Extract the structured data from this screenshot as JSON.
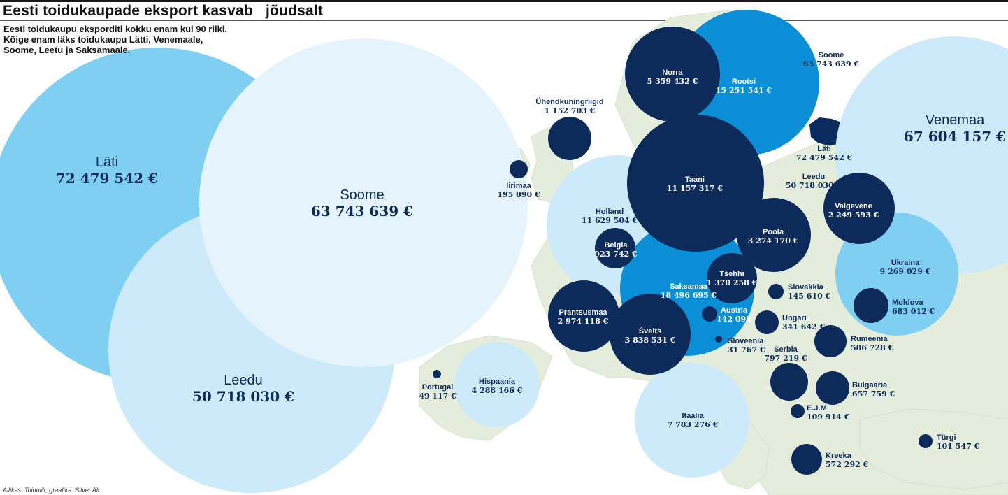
{
  "title": "Eesti toidukaupade eksport kasvab   jõudsalt",
  "intro": [
    "Eesti toidukaupu eksporditi kokku enam kui 90 riiki.",
    "Kõige enam läks toidukaupu Lätti, Venemaale,",
    "Soome, Leetu ja Saksamaale."
  ],
  "source": "Allikas: Toidulilt; graafika: Silver Alt",
  "colors": {
    "land": "#e4ecdb",
    "sea": "#ffffff",
    "estonia": "#0b2a5e",
    "dark": "#0c2b5b",
    "mid": "#0a8fd6",
    "light_blue": "#7fcff3",
    "pale": "#cdeafa",
    "very_pale": "#e5f4fc"
  },
  "countries": [
    {
      "name": "Läti",
      "value": "72 479 542 €",
      "amount": 72479542
    },
    {
      "name": "Venemaa",
      "value": "67 604 157 €",
      "amount": 67604157
    },
    {
      "name": "Soome",
      "value": "63 743 639 €",
      "amount": 63743639
    },
    {
      "name": "Leedu",
      "value": "50 718 030 €",
      "amount": 50718030
    },
    {
      "name": "Saksamaa",
      "value": "18 496 695 €",
      "amount": 18496695
    },
    {
      "name": "Rootsi",
      "value": "15 251 541 €",
      "amount": 15251541
    },
    {
      "name": "Holland",
      "value": "11 629 504 €",
      "amount": 11629504
    },
    {
      "name": "Taani",
      "value": "11 157 317 €",
      "amount": 11157317
    },
    {
      "name": "Ukraina",
      "value": "9 269 029 €",
      "amount": 9269029
    },
    {
      "name": "Itaalia",
      "value": "7 783 276 €",
      "amount": 7783276
    },
    {
      "name": "Norra",
      "value": "5 359 432 €",
      "amount": 5359432
    },
    {
      "name": "Hispaania",
      "value": "4 288 166 €",
      "amount": 4288166
    },
    {
      "name": "Šveits",
      "value": "3 838 531 €",
      "amount": 3838531
    },
    {
      "name": "Poola",
      "value": "3 274 170 €",
      "amount": 3274170
    },
    {
      "name": "Prantsusmaa",
      "value": "2 974 118 €",
      "amount": 2974118
    },
    {
      "name": "Valgevene",
      "value": "2 249 593 €",
      "amount": 2249593
    },
    {
      "name": "Tšehhi",
      "value": "1 370 258 €",
      "amount": 1370258
    },
    {
      "name": "Ühendkuningriigid",
      "value": "1 152 703 €",
      "amount": 1152703
    },
    {
      "name": "Belgia",
      "value": "923 742 €",
      "amount": 923742
    },
    {
      "name": "Serbia",
      "value": "797 219 €",
      "amount": 797219
    },
    {
      "name": "Moldova",
      "value": "683 012 €",
      "amount": 683012
    },
    {
      "name": "Bulgaaria",
      "value": "657 759 €",
      "amount": 657759
    },
    {
      "name": "Rumeenia",
      "value": "586 728 €",
      "amount": 586728
    },
    {
      "name": "Kreeka",
      "value": "572 292 €",
      "amount": 572292
    },
    {
      "name": "Ungari",
      "value": "341 642 €",
      "amount": 341642
    },
    {
      "name": "Iirimaa",
      "value": "195 090 €",
      "amount": 195090
    },
    {
      "name": "Slovakkia",
      "value": "145 610 €",
      "amount": 145610
    },
    {
      "name": "Austria",
      "value": "142 098",
      "amount": 142098
    },
    {
      "name": "E.J.M",
      "value": "109 914 €",
      "amount": 109914
    },
    {
      "name": "Türgi",
      "value": "101 547 €",
      "amount": 101547
    },
    {
      "name": "Portugal",
      "value": "49 117 €",
      "amount": 49117
    },
    {
      "name": "Sloveenia",
      "value": "31 767 €",
      "amount": 31767
    }
  ]
}
